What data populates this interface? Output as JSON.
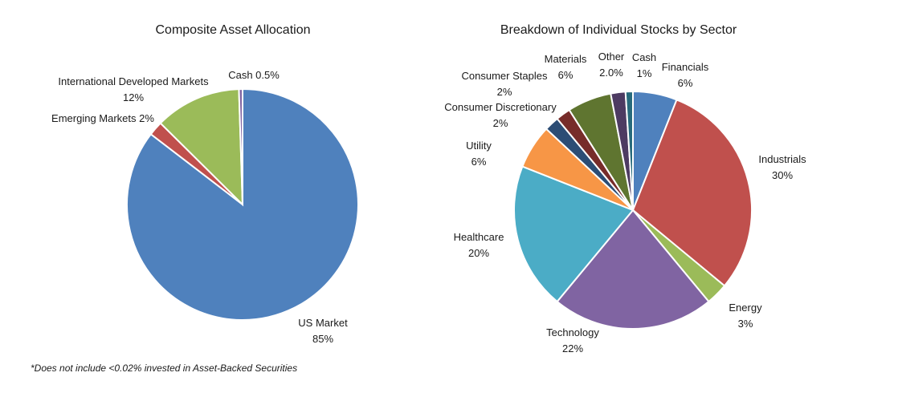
{
  "footnote": "*Does not include <0.02% invested in Asset-Backed Securities",
  "chart_data": [
    {
      "type": "pie",
      "title": "Composite Asset Allocation",
      "slices": [
        {
          "name": "US Market",
          "value": 85,
          "display": "85%",
          "color": "#4f81bd",
          "label_lines": [
            "US Market",
            "85%"
          ]
        },
        {
          "name": "Emerging Markets",
          "value": 2,
          "display": "2%",
          "color": "#c0504d",
          "label_lines": [
            "Emerging Markets 2%"
          ]
        },
        {
          "name": "International Developed Markets",
          "value": 12,
          "display": "12%",
          "color": "#9bbb59",
          "label_lines": [
            "International Developed Markets",
            "12%"
          ]
        },
        {
          "name": "Cash",
          "value": 0.5,
          "display": "0.5%",
          "color": "#8064a2",
          "label_lines": [
            "Cash 0.5%"
          ]
        }
      ]
    },
    {
      "type": "pie",
      "title": "Breakdown of Individual Stocks by Sector",
      "slices": [
        {
          "name": "Financials",
          "value": 6,
          "display": "6%",
          "color": "#4f81bd",
          "label_lines": [
            "Financials",
            "6%"
          ]
        },
        {
          "name": "Industrials",
          "value": 30,
          "display": "30%",
          "color": "#c0504d",
          "label_lines": [
            "Industrials",
            "30%"
          ]
        },
        {
          "name": "Energy",
          "value": 3,
          "display": "3%",
          "color": "#9bbb59",
          "label_lines": [
            "Energy",
            "3%"
          ]
        },
        {
          "name": "Technology",
          "value": 22,
          "display": "22%",
          "color": "#8064a2",
          "label_lines": [
            "Technology",
            "22%"
          ]
        },
        {
          "name": "Healthcare",
          "value": 20,
          "display": "20%",
          "color": "#4bacc6",
          "label_lines": [
            "Healthcare",
            "20%"
          ]
        },
        {
          "name": "Utility",
          "value": 6,
          "display": "6%",
          "color": "#f79646",
          "label_lines": [
            "Utility",
            "6%"
          ]
        },
        {
          "name": "Consumer Discretionary",
          "value": 2,
          "display": "2%",
          "color": "#2c4d75",
          "label_lines": [
            "Consumer Discretionary",
            "2%"
          ]
        },
        {
          "name": "Consumer Staples",
          "value": 2,
          "display": "2%",
          "color": "#772c2a",
          "label_lines": [
            "Consumer Staples",
            "2%"
          ]
        },
        {
          "name": "Materials",
          "value": 6,
          "display": "6%",
          "color": "#5f7530",
          "label_lines": [
            "Materials",
            "6%"
          ]
        },
        {
          "name": "Other",
          "value": 2.0,
          "display": "2.0%",
          "color": "#4d3b62",
          "label_lines": [
            "Other",
            "2.0%"
          ]
        },
        {
          "name": "Cash",
          "value": 1,
          "display": "1%",
          "color": "#276a7c",
          "label_lines": [
            "Cash",
            "1%"
          ]
        }
      ]
    }
  ]
}
